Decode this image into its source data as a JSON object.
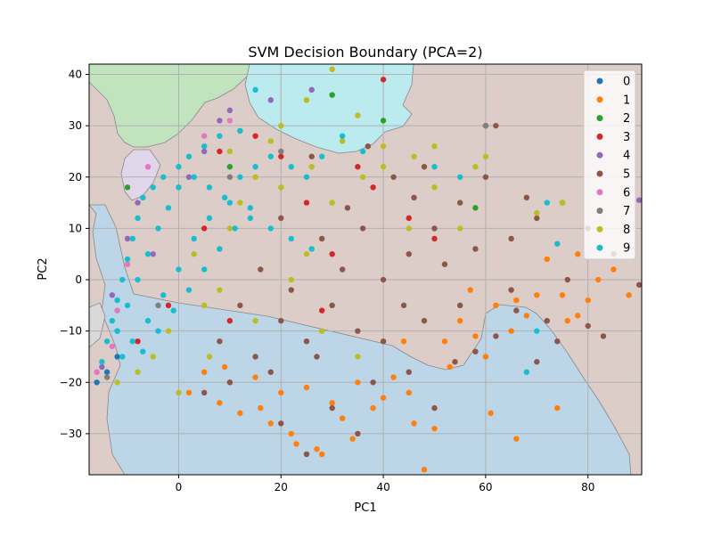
{
  "chart_data": {
    "type": "scatter",
    "title": "SVM Decision Boundary (PCA=2)",
    "xlabel": "PC1",
    "ylabel": "PC2",
    "xlim": [
      -17.5,
      90.5
    ],
    "ylim": [
      -38,
      42
    ],
    "x_ticks": [
      0,
      20,
      40,
      60,
      80
    ],
    "y_ticks": [
      -30,
      -20,
      -10,
      0,
      10,
      20,
      30,
      40
    ],
    "grid": true,
    "legend_position": "top-right",
    "background_regions": [
      {
        "class": "5",
        "color": "#dccdc9"
      },
      {
        "class": "1",
        "color": "#bcd6e7"
      },
      {
        "class": "2",
        "color": "#c1e4bf"
      },
      {
        "class": "9",
        "color": "#bbeaef"
      },
      {
        "class": "4",
        "color": "#e1d5ea"
      }
    ],
    "series": [
      {
        "name": "0",
        "color": "#1f77b4",
        "points": [
          [
            -16,
            -20
          ],
          [
            -14,
            -18
          ],
          [
            -12,
            -15
          ]
        ]
      },
      {
        "name": "1",
        "color": "#ff7f0e",
        "points": [
          [
            2,
            -22
          ],
          [
            5,
            -18
          ],
          [
            8,
            -24
          ],
          [
            10,
            -20
          ],
          [
            12,
            -26
          ],
          [
            15,
            -19
          ],
          [
            18,
            -28
          ],
          [
            20,
            -22
          ],
          [
            22,
            -30
          ],
          [
            25,
            -21
          ],
          [
            27,
            -33
          ],
          [
            30,
            -24
          ],
          [
            32,
            -27
          ],
          [
            35,
            -20
          ],
          [
            38,
            -25
          ],
          [
            40,
            -23
          ],
          [
            42,
            -19
          ],
          [
            45,
            -22
          ],
          [
            48,
            -37
          ],
          [
            50,
            -29
          ],
          [
            52,
            -12
          ],
          [
            55,
            -8
          ],
          [
            57,
            -2
          ],
          [
            58,
            -11
          ],
          [
            60,
            -15
          ],
          [
            62,
            -5
          ],
          [
            65,
            -10
          ],
          [
            66,
            -4
          ],
          [
            68,
            -7
          ],
          [
            70,
            -3
          ],
          [
            75,
            -3
          ],
          [
            78,
            -7
          ],
          [
            80,
            -4
          ],
          [
            78,
            5
          ],
          [
            82,
            0
          ],
          [
            85,
            2
          ],
          [
            88,
            -3
          ],
          [
            72,
            4
          ],
          [
            76,
            -8
          ],
          [
            66,
            -31
          ],
          [
            74,
            -25
          ],
          [
            61,
            -26
          ],
          [
            46,
            -28
          ],
          [
            34,
            -31
          ],
          [
            28,
            -34
          ],
          [
            23,
            -32
          ],
          [
            16,
            -25
          ],
          [
            9,
            -17
          ],
          [
            44,
            -12
          ],
          [
            53,
            -17
          ]
        ]
      },
      {
        "name": "2",
        "color": "#2ca02c",
        "points": [
          [
            -18,
            -20
          ],
          [
            30,
            36
          ],
          [
            10,
            22
          ],
          [
            58,
            14
          ],
          [
            -10,
            18
          ],
          [
            40,
            31
          ]
        ]
      },
      {
        "name": "3",
        "color": "#d62728",
        "points": [
          [
            40,
            39
          ],
          [
            20,
            24
          ],
          [
            35,
            22
          ],
          [
            5,
            10
          ],
          [
            25,
            15
          ],
          [
            45,
            12
          ],
          [
            -2,
            -5
          ],
          [
            10,
            -8
          ],
          [
            30,
            5
          ],
          [
            50,
            8
          ],
          [
            -8,
            -12
          ],
          [
            15,
            28
          ],
          [
            38,
            18
          ],
          [
            60,
            30
          ],
          [
            8,
            25
          ],
          [
            28,
            -6
          ]
        ]
      },
      {
        "name": "4",
        "color": "#9467bd",
        "points": [
          [
            -15,
            -17
          ],
          [
            -12,
            -10
          ],
          [
            -10,
            8
          ],
          [
            -8,
            15
          ],
          [
            8,
            31
          ],
          [
            5,
            25
          ],
          [
            -5,
            5
          ],
          [
            90,
            15.5
          ],
          [
            12,
            29
          ],
          [
            18,
            35
          ],
          [
            26,
            37
          ],
          [
            -13,
            -3
          ],
          [
            2,
            20
          ],
          [
            10,
            33
          ]
        ]
      },
      {
        "name": "5",
        "color": "#8c564b",
        "points": [
          [
            15,
            -15
          ],
          [
            20,
            -8
          ],
          [
            25,
            -12
          ],
          [
            30,
            -5
          ],
          [
            35,
            -10
          ],
          [
            40,
            0
          ],
          [
            45,
            5
          ],
          [
            50,
            10
          ],
          [
            55,
            15
          ],
          [
            60,
            20
          ],
          [
            65,
            8
          ],
          [
            70,
            12
          ],
          [
            75,
            15
          ],
          [
            80,
            10
          ],
          [
            85,
            5
          ],
          [
            90,
            -1
          ],
          [
            62,
            30
          ],
          [
            48,
            22
          ],
          [
            55,
            -5
          ],
          [
            58,
            -14
          ],
          [
            65,
            -2
          ],
          [
            72,
            -8
          ],
          [
            76,
            0
          ],
          [
            80,
            -9
          ],
          [
            83,
            -11
          ],
          [
            68,
            16
          ],
          [
            10,
            -20
          ],
          [
            18,
            -18
          ],
          [
            22,
            -2
          ],
          [
            28,
            8
          ],
          [
            33,
            14
          ],
          [
            37,
            26
          ],
          [
            42,
            20
          ],
          [
            46,
            16
          ],
          [
            52,
            3
          ],
          [
            35,
            -30
          ],
          [
            30,
            -25
          ],
          [
            25,
            -34
          ],
          [
            20,
            -28
          ],
          [
            45,
            -18
          ],
          [
            50,
            -25
          ],
          [
            40,
            -12
          ],
          [
            12,
            -5
          ],
          [
            16,
            2
          ],
          [
            27,
            -15
          ],
          [
            32,
            2
          ],
          [
            38,
            -20
          ],
          [
            44,
            -5
          ],
          [
            54,
            -16
          ],
          [
            62,
            -11
          ],
          [
            70,
            -16
          ],
          [
            20,
            12
          ],
          [
            8,
            -12
          ],
          [
            5,
            -22
          ],
          [
            26,
            24
          ],
          [
            36,
            10
          ],
          [
            48,
            -8
          ],
          [
            58,
            6
          ],
          [
            66,
            -6
          ],
          [
            74,
            -12
          ]
        ]
      },
      {
        "name": "6",
        "color": "#e377c2",
        "points": [
          [
            -16,
            -18
          ],
          [
            -13,
            -13
          ],
          [
            -10,
            3
          ],
          [
            5,
            28
          ],
          [
            10,
            31
          ],
          [
            -6,
            22
          ],
          [
            -12,
            -6
          ]
        ]
      },
      {
        "name": "7",
        "color": "#7f7f7f",
        "points": [
          [
            60,
            30
          ],
          [
            -4,
            -5
          ],
          [
            10,
            20
          ],
          [
            20,
            25
          ],
          [
            -14,
            -19
          ]
        ]
      },
      {
        "name": "8",
        "color": "#bcbd22",
        "points": [
          [
            30,
            41
          ],
          [
            20,
            30
          ],
          [
            25,
            35
          ],
          [
            35,
            32
          ],
          [
            10,
            25
          ],
          [
            15,
            20
          ],
          [
            30,
            15
          ],
          [
            5,
            -5
          ],
          [
            -5,
            -15
          ],
          [
            0,
            -22
          ],
          [
            40,
            22
          ],
          [
            50,
            18
          ],
          [
            60,
            24
          ],
          [
            25,
            5
          ],
          [
            10,
            10
          ],
          [
            -8,
            -18
          ],
          [
            45,
            10
          ],
          [
            55,
            10
          ],
          [
            -2,
            -10
          ],
          [
            3,
            5
          ],
          [
            35,
            -15
          ],
          [
            28,
            -10
          ],
          [
            70,
            13
          ],
          [
            75,
            15
          ],
          [
            18,
            27
          ],
          [
            12,
            15
          ],
          [
            8,
            -2
          ],
          [
            22,
            0
          ],
          [
            32,
            27
          ],
          [
            40,
            26
          ],
          [
            50,
            26
          ],
          [
            58,
            22
          ],
          [
            15,
            -8
          ],
          [
            -12,
            -20
          ],
          [
            6,
            -15
          ],
          [
            20,
            18
          ],
          [
            26,
            22
          ],
          [
            36,
            20
          ],
          [
            46,
            24
          ]
        ]
      },
      {
        "name": "9",
        "color": "#17becf",
        "points": [
          [
            -15,
            -16
          ],
          [
            -14,
            -12
          ],
          [
            -13,
            -8
          ],
          [
            -12,
            -4
          ],
          [
            -11,
            0
          ],
          [
            -10,
            4
          ],
          [
            -9,
            8
          ],
          [
            -8,
            12
          ],
          [
            -7,
            16
          ],
          [
            -5,
            18
          ],
          [
            -3,
            20
          ],
          [
            0,
            22
          ],
          [
            2,
            24
          ],
          [
            5,
            26
          ],
          [
            8,
            28
          ],
          [
            12,
            29
          ],
          [
            15,
            37
          ],
          [
            -12,
            -10
          ],
          [
            -10,
            -5
          ],
          [
            -8,
            0
          ],
          [
            -6,
            5
          ],
          [
            -4,
            10
          ],
          [
            -2,
            14
          ],
          [
            0,
            18
          ],
          [
            3,
            20
          ],
          [
            6,
            18
          ],
          [
            10,
            15
          ],
          [
            14,
            12
          ],
          [
            18,
            10
          ],
          [
            22,
            8
          ],
          [
            26,
            6
          ],
          [
            -9,
            -12
          ],
          [
            -6,
            -8
          ],
          [
            -3,
            -3
          ],
          [
            0,
            2
          ],
          [
            3,
            8
          ],
          [
            6,
            12
          ],
          [
            9,
            16
          ],
          [
            12,
            20
          ],
          [
            15,
            22
          ],
          [
            18,
            24
          ],
          [
            22,
            22
          ],
          [
            25,
            20
          ],
          [
            28,
            24
          ],
          [
            32,
            28
          ],
          [
            36,
            25
          ],
          [
            50,
            22
          ],
          [
            55,
            20
          ],
          [
            72,
            15
          ],
          [
            74,
            7
          ],
          [
            68,
            -18
          ],
          [
            70,
            -10
          ],
          [
            -11,
            -15
          ],
          [
            -7,
            -14
          ],
          [
            -4,
            -10
          ],
          [
            -1,
            -6
          ],
          [
            2,
            -2
          ],
          [
            5,
            2
          ],
          [
            8,
            6
          ],
          [
            11,
            10
          ],
          [
            14,
            14
          ]
        ]
      }
    ]
  }
}
